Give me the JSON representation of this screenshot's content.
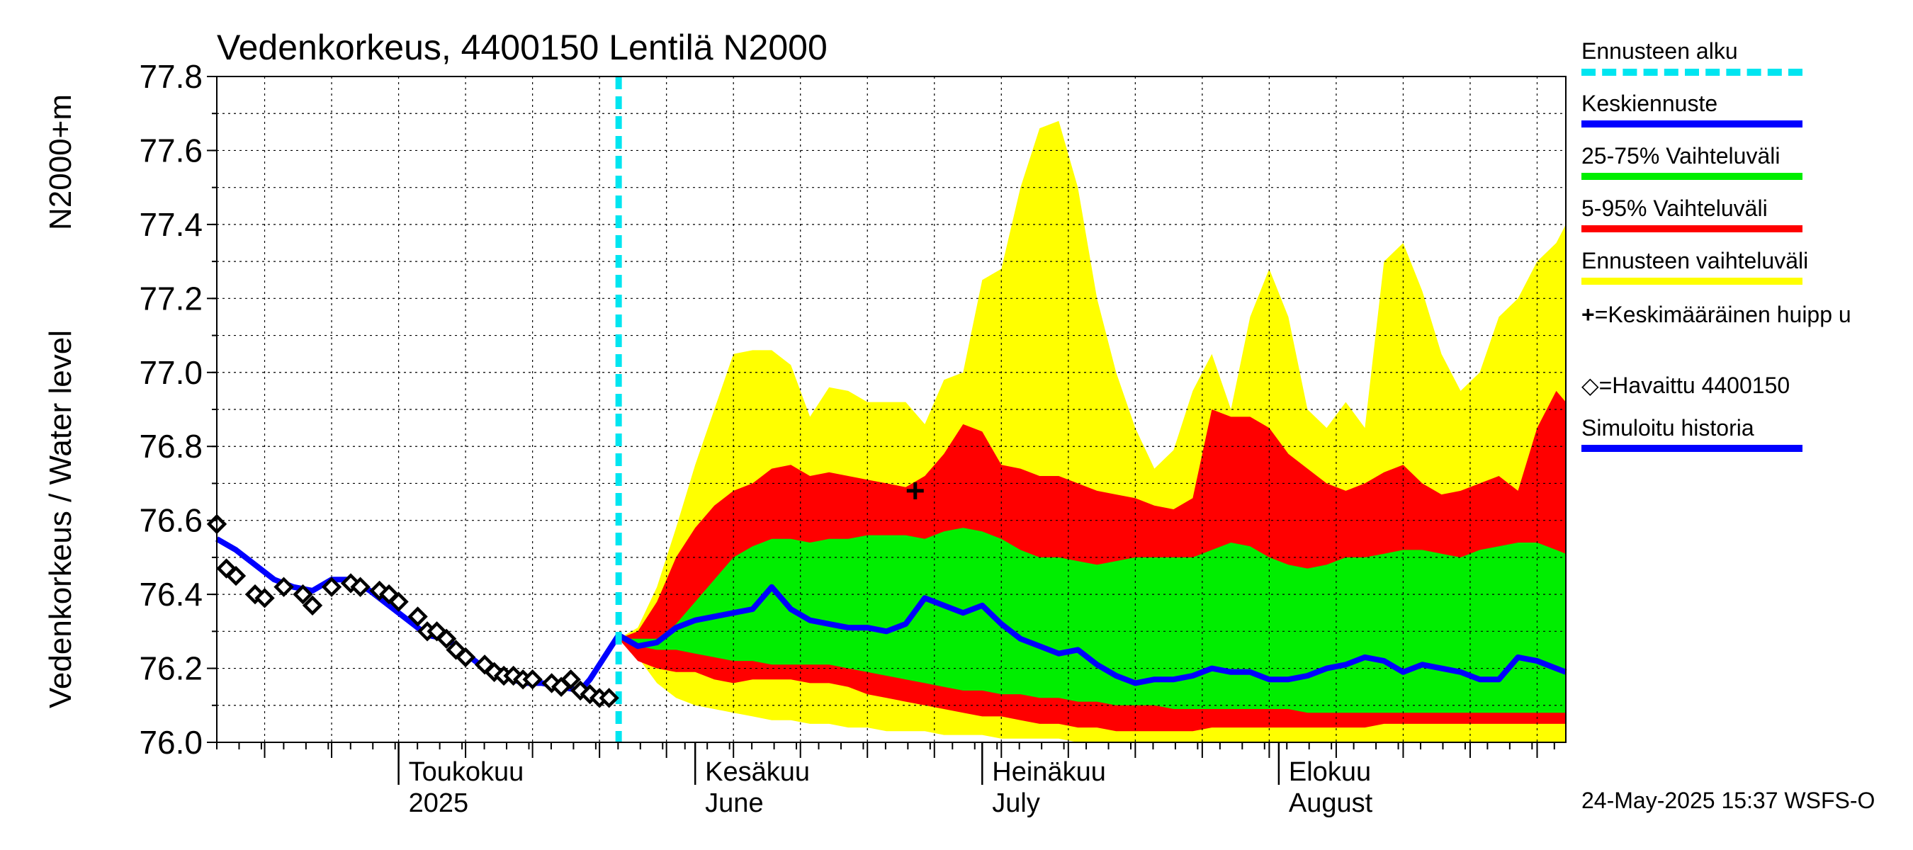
{
  "chart_data": {
    "type": "area",
    "title": "Vedenkorkeus, 4400150 Lentilä N2000",
    "ylabel_line1": "Vedenkorkeus / Water level",
    "ylabel_line2": "N2000+m",
    "ylim": [
      76.0,
      77.8
    ],
    "yticks": [
      "76.0",
      "76.2",
      "76.4",
      "76.6",
      "76.8",
      "77.0",
      "77.2",
      "77.4",
      "77.6",
      "77.8"
    ],
    "xlim": [
      "2025-04-12",
      "2025-08-31"
    ],
    "grid": true,
    "month_labels": [
      {
        "date": "2025-05-01",
        "line1": "Toukokuu",
        "line2": "2025"
      },
      {
        "date": "2025-06-01",
        "line1": "Kesäkuu",
        "line2": "June"
      },
      {
        "date": "2025-07-01",
        "line1": "Heinäkuu",
        "line2": "July"
      },
      {
        "date": "2025-08-01",
        "line1": "Elokuu",
        "line2": "August"
      }
    ],
    "forecast_start": "2025-05-24",
    "mean_peak": {
      "date": "2025-06-24",
      "value": 76.68
    },
    "band_x": [
      "2025-05-24",
      "2025-05-26",
      "2025-05-28",
      "2025-05-30",
      "2025-06-01",
      "2025-06-03",
      "2025-06-05",
      "2025-06-07",
      "2025-06-09",
      "2025-06-11",
      "2025-06-13",
      "2025-06-15",
      "2025-06-17",
      "2025-06-19",
      "2025-06-21",
      "2025-06-23",
      "2025-06-25",
      "2025-06-27",
      "2025-06-29",
      "2025-07-01",
      "2025-07-03",
      "2025-07-05",
      "2025-07-07",
      "2025-07-09",
      "2025-07-11",
      "2025-07-13",
      "2025-07-15",
      "2025-07-17",
      "2025-07-19",
      "2025-07-21",
      "2025-07-23",
      "2025-07-25",
      "2025-07-27",
      "2025-07-29",
      "2025-07-31",
      "2025-08-02",
      "2025-08-04",
      "2025-08-06",
      "2025-08-08",
      "2025-08-10",
      "2025-08-12",
      "2025-08-14",
      "2025-08-16",
      "2025-08-18",
      "2025-08-20",
      "2025-08-22",
      "2025-08-24",
      "2025-08-26",
      "2025-08-28",
      "2025-08-30",
      "2025-08-31"
    ],
    "range_high": [
      76.28,
      76.31,
      76.42,
      76.58,
      76.75,
      76.9,
      77.05,
      77.06,
      77.06,
      77.02,
      76.88,
      76.96,
      76.95,
      76.92,
      76.92,
      76.92,
      76.86,
      76.98,
      77.0,
      77.25,
      77.28,
      77.5,
      77.66,
      77.68,
      77.5,
      77.2,
      77.0,
      76.85,
      76.74,
      76.79,
      76.95,
      77.05,
      76.9,
      77.15,
      77.28,
      77.15,
      76.9,
      76.85,
      76.92,
      76.85,
      77.3,
      77.35,
      77.22,
      77.05,
      76.95,
      77.0,
      77.15,
      77.2,
      77.3,
      77.35,
      77.4
    ],
    "range_low": [
      76.28,
      76.23,
      76.16,
      76.12,
      76.1,
      76.09,
      76.08,
      76.07,
      76.06,
      76.06,
      76.05,
      76.05,
      76.04,
      76.04,
      76.03,
      76.03,
      76.03,
      76.02,
      76.02,
      76.02,
      76.01,
      76.01,
      76.01,
      76.01,
      76.0,
      76.0,
      76.0,
      76.0,
      76.0,
      76.0,
      76.0,
      76.0,
      76.0,
      76.0,
      76.0,
      76.0,
      76.0,
      76.0,
      76.0,
      76.0,
      76.0,
      76.0,
      76.0,
      76.0,
      76.0,
      76.0,
      76.0,
      76.0,
      76.0,
      76.0,
      76.0
    ],
    "p95": [
      76.28,
      76.3,
      76.38,
      76.5,
      76.58,
      76.64,
      76.68,
      76.7,
      76.74,
      76.75,
      76.72,
      76.73,
      76.72,
      76.71,
      76.7,
      76.69,
      76.72,
      76.78,
      76.86,
      76.84,
      76.75,
      76.74,
      76.72,
      76.72,
      76.7,
      76.68,
      76.67,
      76.66,
      76.64,
      76.63,
      76.66,
      76.9,
      76.88,
      76.88,
      76.85,
      76.78,
      76.74,
      76.7,
      76.68,
      76.7,
      76.73,
      76.75,
      76.7,
      76.67,
      76.68,
      76.7,
      76.72,
      76.68,
      76.85,
      76.95,
      76.92
    ],
    "p5": [
      76.28,
      76.22,
      76.2,
      76.19,
      76.19,
      76.17,
      76.16,
      76.17,
      76.17,
      76.17,
      76.16,
      76.16,
      76.15,
      76.13,
      76.12,
      76.11,
      76.1,
      76.09,
      76.08,
      76.07,
      76.07,
      76.06,
      76.05,
      76.05,
      76.04,
      76.04,
      76.03,
      76.03,
      76.03,
      76.03,
      76.03,
      76.04,
      76.04,
      76.04,
      76.04,
      76.04,
      76.04,
      76.04,
      76.04,
      76.04,
      76.05,
      76.05,
      76.05,
      76.05,
      76.05,
      76.05,
      76.05,
      76.05,
      76.05,
      76.05,
      76.05
    ],
    "p75": [
      76.28,
      76.28,
      76.28,
      76.32,
      76.38,
      76.44,
      76.5,
      76.53,
      76.55,
      76.55,
      76.54,
      76.55,
      76.55,
      76.56,
      76.56,
      76.56,
      76.55,
      76.57,
      76.58,
      76.57,
      76.55,
      76.52,
      76.5,
      76.5,
      76.49,
      76.48,
      76.49,
      76.5,
      76.5,
      76.5,
      76.5,
      76.52,
      76.54,
      76.53,
      76.5,
      76.48,
      76.47,
      76.48,
      76.5,
      76.5,
      76.51,
      76.52,
      76.52,
      76.51,
      76.5,
      76.52,
      76.53,
      76.54,
      76.54,
      76.52,
      76.51
    ],
    "p25": [
      76.28,
      76.26,
      76.25,
      76.25,
      76.24,
      76.23,
      76.22,
      76.22,
      76.21,
      76.21,
      76.21,
      76.21,
      76.2,
      76.19,
      76.18,
      76.17,
      76.16,
      76.15,
      76.14,
      76.14,
      76.13,
      76.13,
      76.12,
      76.12,
      76.11,
      76.11,
      76.1,
      76.1,
      76.1,
      76.09,
      76.09,
      76.09,
      76.09,
      76.09,
      76.09,
      76.09,
      76.08,
      76.08,
      76.08,
      76.08,
      76.08,
      76.08,
      76.08,
      76.08,
      76.08,
      76.08,
      76.08,
      76.08,
      76.08,
      76.08,
      76.08
    ],
    "median_forecast": {
      "x": [
        "2025-05-24",
        "2025-05-26",
        "2025-05-28",
        "2025-05-30",
        "2025-06-01",
        "2025-06-03",
        "2025-06-05",
        "2025-06-07",
        "2025-06-09",
        "2025-06-11",
        "2025-06-13",
        "2025-06-15",
        "2025-06-17",
        "2025-06-19",
        "2025-06-21",
        "2025-06-23",
        "2025-06-25",
        "2025-06-27",
        "2025-06-29",
        "2025-07-01",
        "2025-07-03",
        "2025-07-05",
        "2025-07-07",
        "2025-07-09",
        "2025-07-11",
        "2025-07-13",
        "2025-07-15",
        "2025-07-17",
        "2025-07-19",
        "2025-07-21",
        "2025-07-23",
        "2025-07-25",
        "2025-07-27",
        "2025-07-29",
        "2025-07-31",
        "2025-08-02",
        "2025-08-04",
        "2025-08-06",
        "2025-08-08",
        "2025-08-10",
        "2025-08-12",
        "2025-08-14",
        "2025-08-16",
        "2025-08-18",
        "2025-08-20",
        "2025-08-22",
        "2025-08-24",
        "2025-08-26",
        "2025-08-28",
        "2025-08-30",
        "2025-08-31"
      ],
      "y": [
        76.29,
        76.26,
        76.27,
        76.31,
        76.33,
        76.34,
        76.35,
        76.36,
        76.42,
        76.36,
        76.33,
        76.32,
        76.31,
        76.31,
        76.3,
        76.32,
        76.39,
        76.37,
        76.35,
        76.37,
        76.32,
        76.28,
        76.26,
        76.24,
        76.25,
        76.21,
        76.18,
        76.16,
        76.17,
        76.17,
        76.18,
        76.2,
        76.19,
        76.19,
        76.17,
        76.17,
        76.18,
        76.2,
        76.21,
        76.23,
        76.22,
        76.19,
        76.21,
        76.2,
        76.19,
        76.17,
        76.17,
        76.23,
        76.22,
        76.2,
        76.19
      ]
    },
    "simulated_history": {
      "x": [
        "2025-04-12",
        "2025-04-14",
        "2025-04-16",
        "2025-04-18",
        "2025-04-20",
        "2025-04-22",
        "2025-04-24",
        "2025-04-26",
        "2025-04-28",
        "2025-04-30",
        "2025-05-02",
        "2025-05-04",
        "2025-05-06",
        "2025-05-08",
        "2025-05-10",
        "2025-05-12",
        "2025-05-14",
        "2025-05-16",
        "2025-05-18",
        "2025-05-20",
        "2025-05-21",
        "2025-05-22",
        "2025-05-24"
      ],
      "y": [
        76.55,
        76.52,
        76.48,
        76.44,
        76.42,
        76.41,
        76.44,
        76.44,
        76.41,
        76.37,
        76.33,
        76.29,
        76.28,
        76.24,
        76.2,
        76.18,
        76.16,
        76.16,
        76.15,
        76.14,
        76.17,
        76.21,
        76.29
      ]
    },
    "observed": {
      "x": [
        "2025-04-12",
        "2025-04-13",
        "2025-04-14",
        "2025-04-16",
        "2025-04-17",
        "2025-04-19",
        "2025-04-21",
        "2025-04-22",
        "2025-04-24",
        "2025-04-26",
        "2025-04-27",
        "2025-04-29",
        "2025-04-30",
        "2025-05-01",
        "2025-05-03",
        "2025-05-04",
        "2025-05-05",
        "2025-05-06",
        "2025-05-07",
        "2025-05-08",
        "2025-05-10",
        "2025-05-11",
        "2025-05-12",
        "2025-05-13",
        "2025-05-14",
        "2025-05-15",
        "2025-05-17",
        "2025-05-18",
        "2025-05-19",
        "2025-05-20",
        "2025-05-21",
        "2025-05-22",
        "2025-05-23"
      ],
      "y": [
        76.59,
        76.47,
        76.45,
        76.4,
        76.39,
        76.42,
        76.4,
        76.37,
        76.42,
        76.43,
        76.42,
        76.41,
        76.4,
        76.38,
        76.34,
        76.3,
        76.3,
        76.28,
        76.25,
        76.23,
        76.21,
        76.19,
        76.18,
        76.18,
        76.17,
        76.17,
        76.16,
        76.15,
        76.17,
        76.14,
        76.13,
        76.12,
        76.12
      ]
    },
    "legend": {
      "forecast_start": "Ennusteen alku",
      "median": "Keskiennuste",
      "p25_75": "25-75% Vaihteluväli",
      "p5_95": "5-95% Vaihteluväli",
      "range": "Ennusteen vaihteluväli",
      "mean_peak": "=Keskimääräinen huipp u",
      "mean_peak_symbol": "+",
      "observed": "=Havaittu 4400150",
      "observed_symbol": "◇",
      "simulated": "Simuloitu historia"
    },
    "timestamp": "24-May-2025 15:37 WSFS-O",
    "colors": {
      "range": "#ffff00",
      "p5_95": "#ff0000",
      "p25_75": "#00ee00",
      "median": "#0000ff",
      "simulated": "#0000ff",
      "forecast_start": "#00e5f0",
      "grid": "#000000",
      "axis": "#000000"
    }
  }
}
